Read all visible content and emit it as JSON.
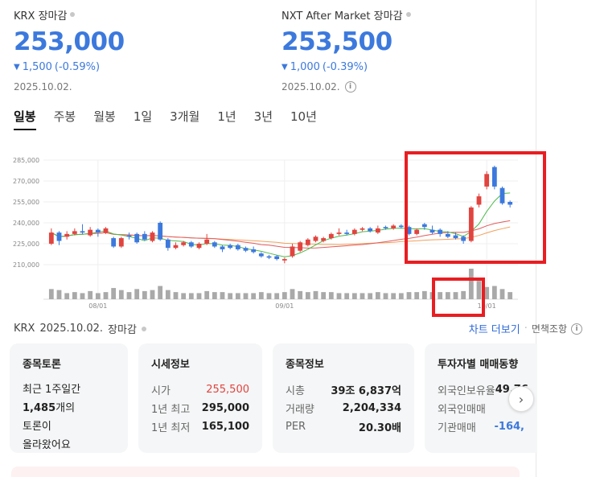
{
  "krx": {
    "label": "KRX 장마감",
    "price": "253,000",
    "change": "1,500",
    "change_pct": "(-0.59%)",
    "date": "2025.10.02."
  },
  "nxt": {
    "label": "NXT After Market 장마감",
    "price": "253,500",
    "change": "1,000",
    "change_pct": "(-0.39%)",
    "date": "2025.10.02."
  },
  "tabs": [
    "일봉",
    "주봉",
    "월봉",
    "1일",
    "3개월",
    "1년",
    "3년",
    "10년"
  ],
  "chart_footer": {
    "exchange": "KRX",
    "date": "2025.10.02.",
    "status": "장마감",
    "chart_more": "차트 더보기",
    "disclaimer": "면책조항"
  },
  "chart_data": {
    "type": "candlestick",
    "y_ticks": [
      "285,000",
      "270,000",
      "255,000",
      "240,000",
      "225,000",
      "210,000"
    ],
    "ylim": [
      210000,
      285000
    ],
    "x_ticks": [
      "08/01",
      "09/01",
      "10/01"
    ],
    "up_color": "#e1443f",
    "down_color": "#3c79dd",
    "candles": [
      {
        "o": 225000,
        "c": 233000,
        "h": 236000,
        "l": 224000,
        "v": 20
      },
      {
        "o": 233000,
        "c": 227000,
        "h": 234000,
        "l": 224000,
        "v": 18
      },
      {
        "o": 230000,
        "c": 232000,
        "h": 234000,
        "l": 228000,
        "v": 12
      },
      {
        "o": 232000,
        "c": 234000,
        "h": 236000,
        "l": 231000,
        "v": 14
      },
      {
        "o": 234000,
        "c": 233000,
        "h": 239000,
        "l": 232000,
        "v": 12
      },
      {
        "o": 231000,
        "c": 235000,
        "h": 237000,
        "l": 230000,
        "v": 16
      },
      {
        "o": 235000,
        "c": 233000,
        "h": 236000,
        "l": 230000,
        "v": 12
      },
      {
        "o": 233000,
        "c": 236000,
        "h": 237000,
        "l": 232000,
        "v": 14
      },
      {
        "o": 229000,
        "c": 223000,
        "h": 230000,
        "l": 222000,
        "v": 22
      },
      {
        "o": 223000,
        "c": 229000,
        "h": 230000,
        "l": 222000,
        "v": 18
      },
      {
        "o": 231000,
        "c": 230000,
        "h": 233000,
        "l": 228000,
        "v": 14
      },
      {
        "o": 232000,
        "c": 226000,
        "h": 233000,
        "l": 225000,
        "v": 20
      },
      {
        "o": 232000,
        "c": 228000,
        "h": 234000,
        "l": 227000,
        "v": 16
      },
      {
        "o": 227000,
        "c": 233000,
        "h": 234000,
        "l": 226000,
        "v": 18
      },
      {
        "o": 240000,
        "c": 228000,
        "h": 241000,
        "l": 227000,
        "v": 26
      },
      {
        "o": 228000,
        "c": 222000,
        "h": 229000,
        "l": 220000,
        "v": 18
      },
      {
        "o": 222000,
        "c": 224000,
        "h": 226000,
        "l": 221000,
        "v": 14
      },
      {
        "o": 224000,
        "c": 226000,
        "h": 227000,
        "l": 223000,
        "v": 12
      },
      {
        "o": 226000,
        "c": 223000,
        "h": 227000,
        "l": 222000,
        "v": 12
      },
      {
        "o": 222000,
        "c": 225000,
        "h": 226000,
        "l": 221000,
        "v": 12
      },
      {
        "o": 225000,
        "c": 228000,
        "h": 232000,
        "l": 224000,
        "v": 16
      },
      {
        "o": 226000,
        "c": 223000,
        "h": 227000,
        "l": 222000,
        "v": 14
      },
      {
        "o": 223000,
        "c": 221000,
        "h": 224000,
        "l": 219000,
        "v": 14
      },
      {
        "o": 224000,
        "c": 222000,
        "h": 225000,
        "l": 221000,
        "v": 12
      },
      {
        "o": 224000,
        "c": 221000,
        "h": 225000,
        "l": 220000,
        "v": 12
      },
      {
        "o": 222000,
        "c": 220000,
        "h": 223000,
        "l": 219000,
        "v": 12
      },
      {
        "o": 221000,
        "c": 219000,
        "h": 223000,
        "l": 218000,
        "v": 12
      },
      {
        "o": 218000,
        "c": 216000,
        "h": 219000,
        "l": 215000,
        "v": 14
      },
      {
        "o": 216000,
        "c": 215000,
        "h": 217000,
        "l": 214000,
        "v": 12
      },
      {
        "o": 216000,
        "c": 214000,
        "h": 217000,
        "l": 213000,
        "v": 12
      },
      {
        "o": 213000,
        "c": 214000,
        "h": 215000,
        "l": 211000,
        "v": 14
      },
      {
        "o": 216000,
        "c": 223000,
        "h": 225000,
        "l": 215000,
        "v": 20
      },
      {
        "o": 220000,
        "c": 226000,
        "h": 227000,
        "l": 219000,
        "v": 16
      },
      {
        "o": 224000,
        "c": 228000,
        "h": 229000,
        "l": 223000,
        "v": 14
      },
      {
        "o": 227000,
        "c": 230000,
        "h": 231000,
        "l": 226000,
        "v": 16
      },
      {
        "o": 227000,
        "c": 229000,
        "h": 230000,
        "l": 226000,
        "v": 14
      },
      {
        "o": 229000,
        "c": 232000,
        "h": 233000,
        "l": 228000,
        "v": 14
      },
      {
        "o": 232000,
        "c": 233000,
        "h": 236000,
        "l": 231000,
        "v": 12
      },
      {
        "o": 233000,
        "c": 232000,
        "h": 235000,
        "l": 231000,
        "v": 12
      },
      {
        "o": 232000,
        "c": 235000,
        "h": 236000,
        "l": 231000,
        "v": 12
      },
      {
        "o": 235000,
        "c": 236000,
        "h": 237000,
        "l": 234000,
        "v": 12
      },
      {
        "o": 236000,
        "c": 234000,
        "h": 237000,
        "l": 233000,
        "v": 12
      },
      {
        "o": 233000,
        "c": 236000,
        "h": 238000,
        "l": 232000,
        "v": 14
      },
      {
        "o": 237000,
        "c": 236000,
        "h": 238000,
        "l": 235000,
        "v": 12
      },
      {
        "o": 236000,
        "c": 238000,
        "h": 239000,
        "l": 235000,
        "v": 12
      },
      {
        "o": 238000,
        "c": 237000,
        "h": 239000,
        "l": 236000,
        "v": 12
      },
      {
        "o": 237000,
        "c": 232000,
        "h": 238000,
        "l": 231000,
        "v": 14
      },
      {
        "o": 232000,
        "c": 235000,
        "h": 236000,
        "l": 231000,
        "v": 14
      },
      {
        "o": 239000,
        "c": 237000,
        "h": 240000,
        "l": 235000,
        "v": 16
      },
      {
        "o": 235000,
        "c": 233000,
        "h": 238000,
        "l": 232000,
        "v": 14
      },
      {
        "o": 235000,
        "c": 232000,
        "h": 236000,
        "l": 230000,
        "v": 14
      },
      {
        "o": 232000,
        "c": 230000,
        "h": 234000,
        "l": 229000,
        "v": 14
      },
      {
        "o": 231000,
        "c": 229000,
        "h": 233000,
        "l": 228000,
        "v": 14
      },
      {
        "o": 230000,
        "c": 227000,
        "h": 231000,
        "l": 225000,
        "v": 16
      },
      {
        "o": 227000,
        "c": 251000,
        "h": 252000,
        "l": 226000,
        "v": 60
      },
      {
        "o": 253000,
        "c": 259000,
        "h": 261000,
        "l": 251000,
        "v": 36
      },
      {
        "o": 266000,
        "c": 275000,
        "h": 277000,
        "l": 264000,
        "v": 24
      },
      {
        "o": 280000,
        "c": 266000,
        "h": 281000,
        "l": 264000,
        "v": 26
      },
      {
        "o": 265000,
        "c": 254000,
        "h": 266000,
        "l": 253000,
        "v": 20
      },
      {
        "o": 255000,
        "c": 253000,
        "h": 256000,
        "l": 251000,
        "v": 14
      }
    ],
    "ma_short_color": "#4dbb4a",
    "ma_long_color": "#e25b5b",
    "ma_longer_color": "#f1a05a"
  },
  "cards": {
    "forum": {
      "title": "종목토론",
      "line1": "최근 1주일간",
      "count": "1,485",
      "line2_suffix": "개의",
      "line3": "토론이",
      "line4": "올라왔어요"
    },
    "market": {
      "title": "시세정보",
      "rows": [
        {
          "k": "시가",
          "v": "255,500"
        },
        {
          "k": "1년 최고",
          "v": "295,000"
        },
        {
          "k": "1년 최저",
          "v": "165,100"
        }
      ]
    },
    "stock": {
      "title": "종목정보",
      "rows": [
        {
          "k": "시총",
          "v": "39조 6,837억"
        },
        {
          "k": "거래량",
          "v": "2,204,334"
        },
        {
          "k": "PER",
          "v": "20.30배"
        }
      ]
    },
    "investor": {
      "title": "투자자별 매매동향",
      "rows": [
        {
          "k": "외국인보유율",
          "v": "49.76"
        },
        {
          "k": "외국인매매",
          "v": "-"
        },
        {
          "k": "기관매매",
          "v": "-164,"
        }
      ]
    }
  }
}
